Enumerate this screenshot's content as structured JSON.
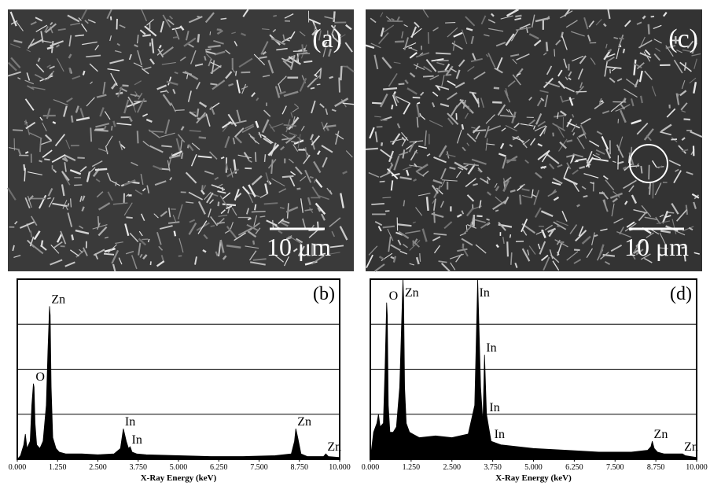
{
  "images": [
    {
      "label": "(a)",
      "scale_bar": "10 μm"
    },
    {
      "label": "(c)",
      "scale_bar": "10 μm"
    }
  ],
  "chart_data": [
    {
      "type": "area",
      "label": "(b)",
      "xlabel": "X-Ray Energy (keV)",
      "color": "#000000",
      "x": [
        0,
        0.1,
        0.2,
        0.25,
        0.3,
        0.4,
        0.45,
        0.5,
        0.52,
        0.55,
        0.6,
        0.7,
        0.8,
        0.9,
        0.95,
        1.0,
        1.02,
        1.05,
        1.1,
        1.2,
        1.3,
        1.5,
        2.0,
        2.5,
        3.0,
        3.2,
        3.29,
        3.38,
        3.45,
        3.5,
        3.56,
        3.7,
        4.0,
        5.0,
        6.0,
        7.0,
        8.0,
        8.5,
        8.6,
        8.64,
        8.7,
        8.8,
        9.0,
        9.5,
        9.57,
        9.65,
        10.0
      ],
      "values": [
        0,
        2,
        8,
        14,
        6,
        10,
        30,
        42,
        40,
        20,
        8,
        6,
        10,
        30,
        60,
        85,
        80,
        40,
        12,
        6,
        4,
        3,
        3,
        2.5,
        3,
        6,
        17,
        10,
        6,
        7,
        4,
        3,
        2.5,
        2,
        1.5,
        1.5,
        2,
        3,
        10,
        17,
        12,
        3,
        1.5,
        1.5,
        3,
        1.5,
        1
      ],
      "xlim": [
        0,
        10
      ],
      "ylim": [
        0,
        100
      ],
      "ygrid": [
        25,
        50,
        75
      ],
      "xticks": [
        {
          "value": 0,
          "label": "0.000"
        },
        {
          "value": 1.25,
          "label": "1.250"
        },
        {
          "value": 2.5,
          "label": "2.500"
        },
        {
          "value": 3.75,
          "label": "3.750"
        },
        {
          "value": 5,
          "label": "5.000"
        },
        {
          "value": 6.25,
          "label": "6.250"
        },
        {
          "value": 7.5,
          "label": "7.500"
        },
        {
          "value": 8.75,
          "label": "8.750"
        },
        {
          "value": 10,
          "label": "10.000"
        }
      ],
      "annotations": [
        {
          "text": "O",
          "x": 0.52,
          "y": 42
        },
        {
          "text": "Zn",
          "x": 1.01,
          "y": 85
        },
        {
          "text": "In",
          "x": 3.29,
          "y": 17
        },
        {
          "text": "In",
          "x": 3.5,
          "y": 7
        },
        {
          "text": "Zn",
          "x": 8.64,
          "y": 17
        },
        {
          "text": "Zn",
          "x": 9.57,
          "y": 3
        }
      ]
    },
    {
      "type": "area",
      "label": "(d)",
      "xlabel": "X-Ray Energy (keV)",
      "color": "#000000",
      "x": [
        0,
        0.1,
        0.2,
        0.25,
        0.3,
        0.4,
        0.45,
        0.5,
        0.52,
        0.55,
        0.6,
        0.7,
        0.8,
        0.9,
        0.95,
        1.0,
        1.02,
        1.05,
        1.1,
        1.2,
        1.3,
        1.5,
        2.0,
        2.5,
        3.0,
        3.2,
        3.29,
        3.38,
        3.45,
        3.5,
        3.56,
        3.7,
        4.0,
        5.0,
        6.0,
        7.0,
        8.0,
        8.5,
        8.6,
        8.64,
        8.7,
        8.8,
        9.0,
        9.5,
        9.57,
        9.65,
        10.0
      ],
      "values": [
        0,
        15,
        20,
        25,
        18,
        20,
        50,
        87,
        80,
        30,
        15,
        15,
        18,
        40,
        70,
        100,
        90,
        40,
        20,
        15,
        14,
        12,
        13,
        12,
        14,
        30,
        100,
        40,
        20,
        58,
        25,
        10,
        8,
        6,
        5,
        4,
        4,
        5,
        7,
        10,
        6,
        4,
        3,
        3,
        3,
        2,
        1
      ],
      "xlim": [
        0,
        10
      ],
      "ylim": [
        0,
        100
      ],
      "ygrid": [
        25,
        50,
        75
      ],
      "xticks": [
        {
          "value": 0,
          "label": "0.000"
        },
        {
          "value": 1.25,
          "label": "1.250"
        },
        {
          "value": 2.5,
          "label": "2.500"
        },
        {
          "value": 3.75,
          "label": "3.750"
        },
        {
          "value": 5,
          "label": "5.000"
        },
        {
          "value": 6.25,
          "label": "6.250"
        },
        {
          "value": 7.5,
          "label": "7.500"
        },
        {
          "value": 8.75,
          "label": "8.750"
        },
        {
          "value": 10,
          "label": "10.000"
        }
      ],
      "annotations": [
        {
          "text": "O",
          "x": 0.52,
          "y": 87
        },
        {
          "text": "Zn",
          "x": 1.01,
          "y": 100
        },
        {
          "text": "In",
          "x": 3.29,
          "y": 100
        },
        {
          "text": "In",
          "x": 3.5,
          "y": 58
        },
        {
          "text": "In",
          "x": 3.6,
          "y": 25
        },
        {
          "text": "In",
          "x": 3.75,
          "y": 10
        },
        {
          "text": "Zn",
          "x": 8.64,
          "y": 10
        },
        {
          "text": "Zn",
          "x": 9.57,
          "y": 3
        }
      ]
    }
  ]
}
